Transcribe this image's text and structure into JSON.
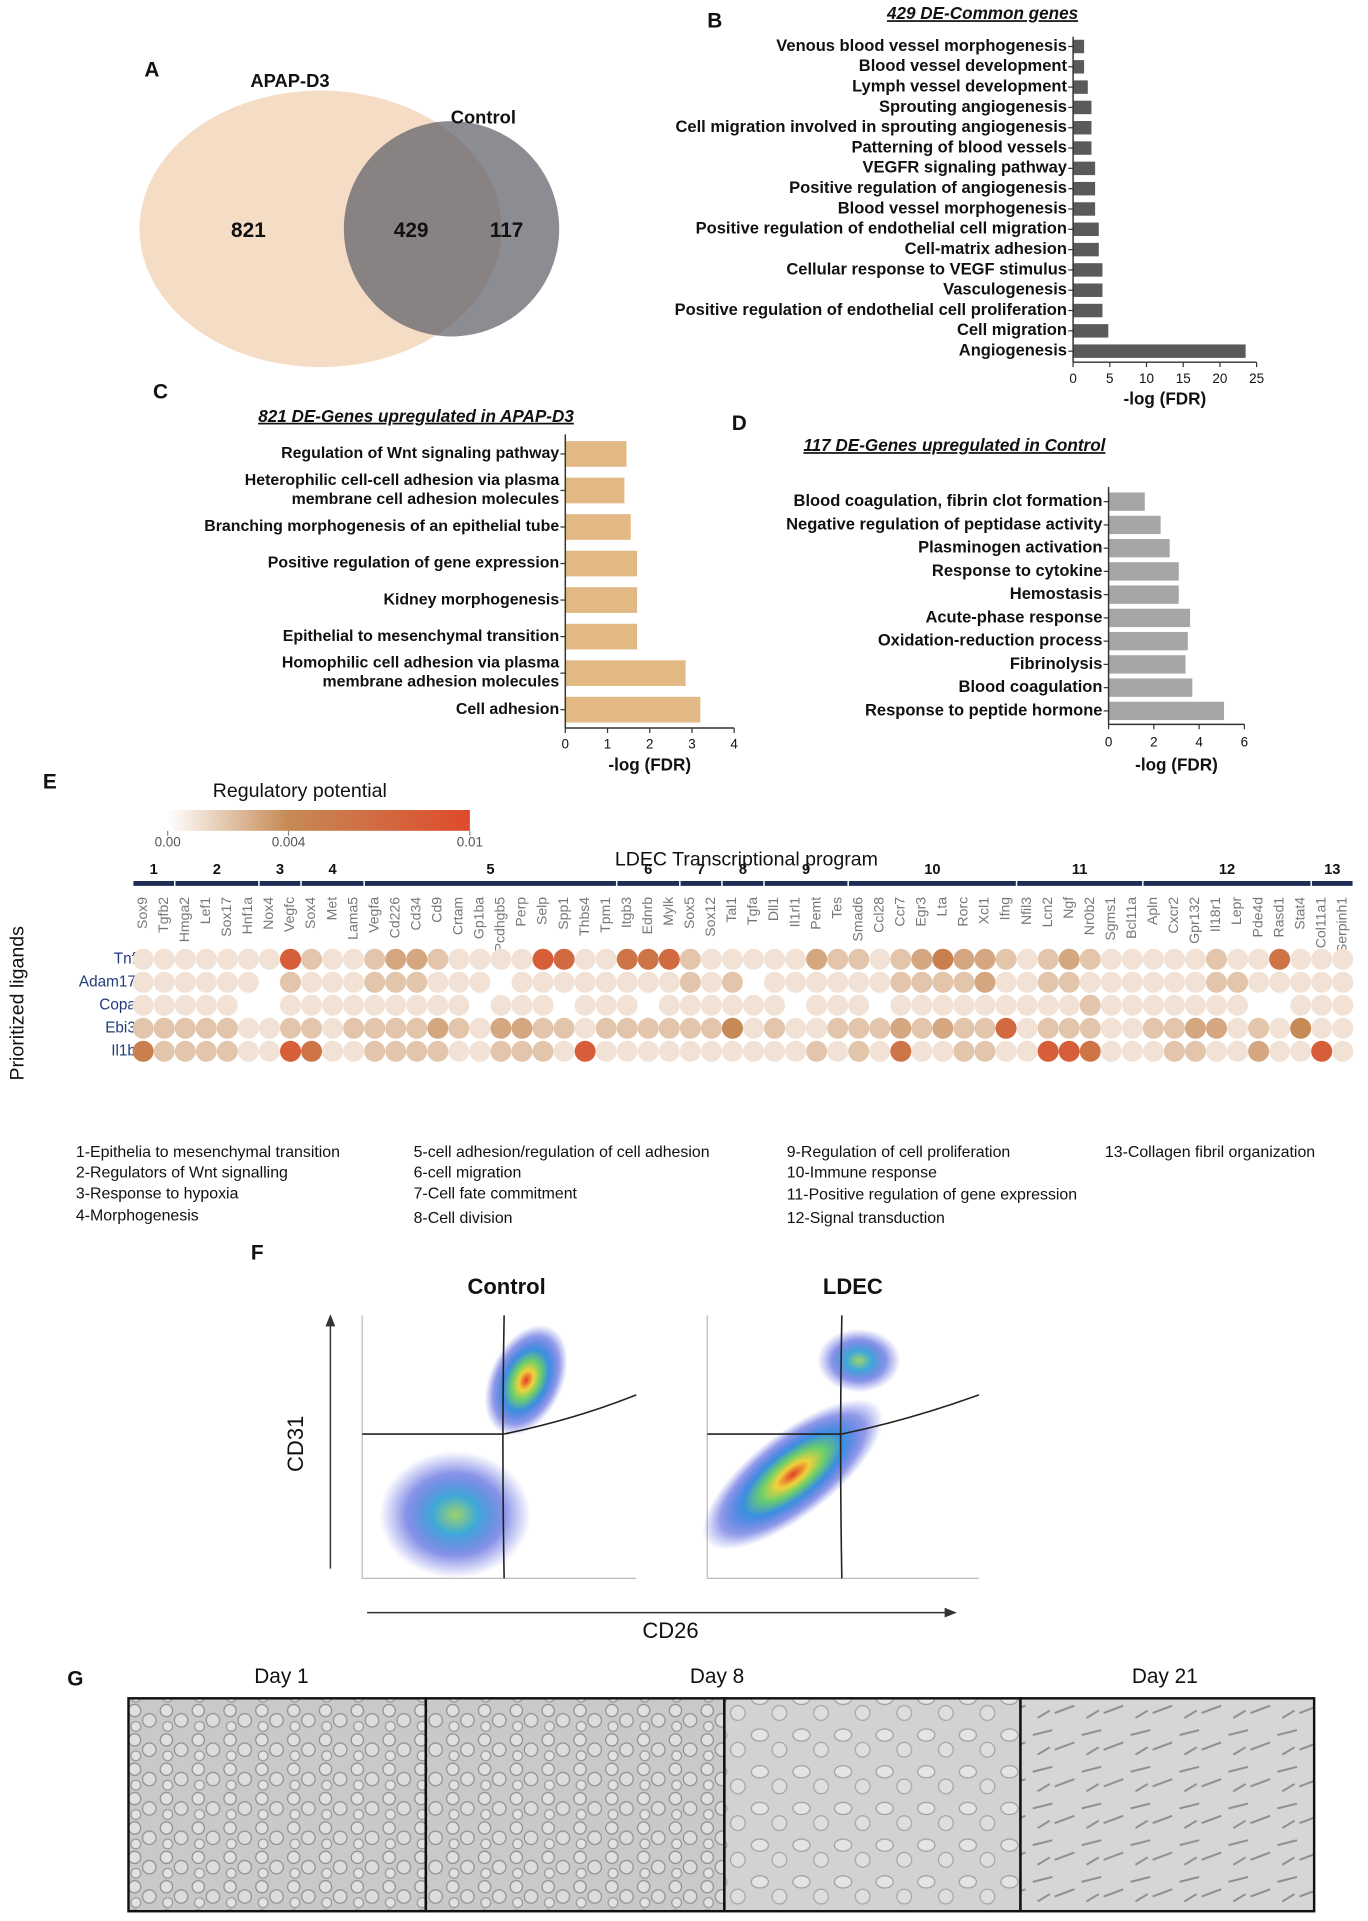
{
  "chart_data": [
    {
      "type": "venn",
      "panel": "A",
      "sets": [
        "APAP-D3",
        "Control"
      ],
      "values": [
        821,
        429,
        117
      ]
    },
    {
      "type": "hbar",
      "panel": "B",
      "title": "429 DE-Common genes",
      "x_label": "-log (FDR)",
      "color": "#5a5a5a",
      "categories": [
        "Venous blood vessel morphogenesis",
        "Blood vessel development",
        "Lymph vessel development",
        "Sprouting angiogenesis",
        "Cell migration involved in sprouting angiogenesis",
        "Patterning of blood vessels",
        "VEGFR signaling pathway",
        "Positive regulation of angiogenesis",
        "Blood vessel morphogenesis",
        "Positive regulation of endothelial cell migration",
        "Cell-matrix adhesion",
        "Cellular response to VEGF stimulus",
        "Vasculogenesis",
        "Positive regulation of endothelial cell proliferation",
        "Cell migration",
        "Angiogenesis"
      ],
      "values": [
        1.5,
        1.5,
        2,
        2.5,
        2.5,
        2.5,
        3,
        3,
        3,
        3.5,
        3.5,
        4,
        4,
        4,
        4.8,
        23.5
      ],
      "xlim": [
        0,
        25
      ],
      "xticks": [
        0,
        5,
        10,
        15,
        20,
        25
      ]
    },
    {
      "type": "hbar",
      "panel": "C",
      "title": "821 DE-Genes upregulated in APAP-D3",
      "x_label": "-log (FDR)",
      "color": "#e2b984",
      "categories": [
        "Regulation of Wnt signaling pathway",
        "Heterophilic cell-cell adhesion via plasma\nmembrane cell adhesion molecules",
        "Branching morphogenesis of an epithelial tube",
        "Positive regulation of gene expression",
        "Kidney morphogenesis",
        "Epithelial to mesenchymal transition",
        "Homophilic cell adhesion via plasma\nmembrane adhesion molecules",
        "Cell adhesion"
      ],
      "values": [
        1.45,
        1.4,
        1.55,
        1.7,
        1.7,
        1.7,
        2.85,
        3.2
      ],
      "xlim": [
        0,
        4
      ],
      "xticks": [
        0,
        1,
        2,
        3,
        4
      ]
    },
    {
      "type": "hbar",
      "panel": "D",
      "title": "117 DE-Genes upregulated in Control",
      "x_label": "-log (FDR)",
      "color": "#a6a6a6",
      "categories": [
        "Blood coagulation, fibrin clot formation",
        "Negative regulation of peptidase activity",
        "Plasminogen activation",
        "Response to cytokine",
        "Hemostasis",
        "Acute-phase response",
        "Oxidation-reduction process",
        "Fibrinolysis",
        "Blood coagulation",
        "Response to peptide hormone"
      ],
      "values": [
        1.6,
        2.3,
        2.7,
        3.1,
        3.1,
        3.6,
        3.5,
        3.4,
        3.7,
        5.1
      ],
      "xlim": [
        0,
        6
      ],
      "xticks": [
        0,
        2,
        4,
        6
      ]
    },
    {
      "type": "dotmatrix",
      "panel": "E",
      "colorbar_title": "Regulatory potential",
      "colorbar": {
        "ticks": [
          {
            "value": 0,
            "label": "0.00"
          },
          0.004,
          0.01
        ],
        "colors": [
          "#ffffff",
          "#c58a55",
          "#df4a2c"
        ]
      },
      "title": "LDEC Transcriptional program",
      "y_label": "Prioritized ligands",
      "ligands": [
        "Tnf",
        "Adam17",
        "Copa",
        "Ebi3",
        "Il1b"
      ],
      "groups": [
        {
          "label": "1",
          "targets": [
            "Sox9",
            "Tgfb2"
          ]
        },
        {
          "label": "2",
          "targets": [
            "Hmga2",
            "Lef1",
            "Sox17",
            "Hnf1a"
          ]
        },
        {
          "label": "3",
          "targets": [
            "Nox4",
            "Vegfc"
          ]
        },
        {
          "label": "4",
          "targets": [
            "Sox4",
            "Met",
            "Lama5"
          ]
        },
        {
          "label": "5",
          "targets": [
            "Vegfa",
            "Cd226",
            "Cd34",
            "Cd9",
            "Crtam",
            "Gp1ba",
            "Pcdhgb5",
            "Perp",
            "Selp",
            "Spp1",
            "Thbs4",
            "Tpm1"
          ]
        },
        {
          "label": "6",
          "targets": [
            "Itgb3",
            "Ednrb",
            "Mylk"
          ]
        },
        {
          "label": "7",
          "targets": [
            "Sox5",
            "Sox12"
          ]
        },
        {
          "label": "8",
          "targets": [
            "Tal1",
            "Tgfa"
          ]
        },
        {
          "label": "9",
          "targets": [
            "Dll1",
            "Il1rl1",
            "Pemt",
            "Tes"
          ]
        },
        {
          "label": "10",
          "targets": [
            "Smad6",
            "Ccl28",
            "Ccr7",
            "Egr3",
            "Lta",
            "Rorc",
            "Xcl1",
            "Ifng"
          ]
        },
        {
          "label": "11",
          "targets": [
            "Nfil3",
            "Lcn2",
            "Ngf",
            "Nr0b2",
            "Sgms1",
            "Bcl11a"
          ]
        },
        {
          "label": "12",
          "targets": [
            "Apln",
            "Cxcr2",
            "Gpr132",
            "Il18r1",
            "Lepr",
            "Pde4d",
            "Rasd1",
            "Stat4"
          ]
        },
        {
          "label": "13",
          "targets": [
            "Col11a1",
            "Serpinh1"
          ]
        }
      ],
      "values": [
        [
          0.001,
          0.001,
          0.001,
          0.001,
          0.001,
          0.001,
          0.001,
          0.008,
          0.002,
          0.001,
          0.001,
          0.002,
          0.003,
          0.003,
          0.002,
          0.001,
          0.001,
          0.001,
          0.001,
          0.008,
          0.007,
          0.001,
          0.001,
          0.006,
          0.006,
          0.007,
          0.002,
          0.001,
          0.001,
          0.001,
          0.001,
          0.001,
          0.003,
          0.002,
          0.002,
          0.001,
          0.002,
          0.003,
          0.005,
          0.003,
          0.003,
          0.002,
          0.001,
          0.002,
          0.003,
          0.002,
          0.001,
          0.001,
          0.001,
          0.001,
          0.001,
          0.002,
          0.001,
          0.001,
          0.006,
          0.001,
          0.001,
          0.001
        ],
        [
          0.001,
          0.001,
          0.001,
          0.001,
          0.001,
          0.001,
          0,
          0.002,
          0.001,
          0.001,
          0.001,
          0.002,
          0.002,
          0.002,
          0.001,
          0.001,
          0.001,
          0,
          0.001,
          0.001,
          0.001,
          0.001,
          0.001,
          0.001,
          0.001,
          0.001,
          0.002,
          0.001,
          0.002,
          0,
          0.001,
          0.001,
          0.001,
          0.001,
          0.001,
          0.001,
          0.002,
          0.002,
          0.002,
          0.002,
          0.003,
          0.001,
          0.001,
          0.002,
          0.002,
          0.001,
          0.001,
          0.001,
          0.001,
          0.001,
          0.001,
          0.002,
          0.002,
          0.001,
          0.001,
          0.001,
          0.001,
          0.001
        ],
        [
          0.001,
          0.001,
          0.001,
          0.001,
          0.001,
          0,
          0,
          0.001,
          0.001,
          0.001,
          0.001,
          0.001,
          0.001,
          0.001,
          0.001,
          0.001,
          0,
          0.001,
          0.001,
          0.001,
          0,
          0.001,
          0.001,
          0.001,
          0,
          0.001,
          0.001,
          0.001,
          0.001,
          0.001,
          0.001,
          0,
          0.001,
          0.001,
          0.001,
          0,
          0.001,
          0.001,
          0.001,
          0.001,
          0.001,
          0.001,
          0.001,
          0.001,
          0.001,
          0.002,
          0.001,
          0.001,
          0.001,
          0.001,
          0.001,
          0.001,
          0.001,
          0,
          0,
          0.001,
          0.001,
          0.001
        ],
        [
          0.002,
          0.002,
          0.002,
          0.002,
          0.002,
          0.001,
          0.001,
          0.002,
          0.002,
          0.001,
          0.002,
          0.002,
          0.002,
          0.002,
          0.003,
          0.002,
          0.001,
          0.003,
          0.003,
          0.002,
          0.002,
          0.001,
          0.002,
          0.002,
          0.002,
          0.002,
          0.002,
          0.002,
          0.004,
          0.001,
          0.002,
          0.001,
          0.001,
          0.002,
          0.002,
          0.002,
          0.003,
          0.002,
          0.003,
          0.002,
          0.002,
          0.007,
          0.001,
          0.002,
          0.002,
          0.002,
          0.001,
          0.001,
          0.002,
          0.002,
          0.003,
          0.003,
          0.001,
          0.002,
          0.001,
          0.004,
          0.001,
          0.001
        ],
        [
          0.005,
          0.002,
          0.002,
          0.002,
          0.002,
          0.001,
          0.001,
          0.008,
          0.006,
          0.001,
          0.001,
          0.002,
          0.002,
          0.002,
          0.002,
          0.001,
          0.001,
          0.002,
          0.002,
          0.002,
          0.001,
          0.008,
          0.001,
          0.001,
          0.001,
          0.001,
          0.001,
          0.001,
          0.001,
          0.001,
          0.001,
          0.001,
          0.002,
          0.001,
          0.002,
          0.001,
          0.006,
          0.001,
          0.001,
          0.002,
          0.002,
          0.001,
          0.001,
          0.008,
          0.008,
          0.006,
          0.001,
          0.001,
          0.001,
          0.002,
          0.002,
          0.001,
          0.001,
          0.003,
          0.001,
          0.001,
          0.008,
          0.001
        ]
      ],
      "group_legend": [
        "1-Epithelia to mesenchymal transition",
        "2-Regulators of Wnt signalling",
        "3-Response to hypoxia",
        "4-Morphogenesis",
        "5-cell adhesion/regulation of cell adhesion",
        "6-cell migration",
        "7-Cell fate commitment",
        "8-Cell division",
        "9-Regulation of cell proliferation",
        "10-Immune response",
        "11-Positive regulation of gene expression",
        "12-Signal transduction",
        "13-Collagen fibril organization"
      ]
    }
  ],
  "flow": {
    "panel": "F",
    "titles": [
      "Control",
      "LDEC"
    ],
    "y_label": "CD31",
    "x_label": "CD26"
  },
  "micrographs": {
    "panel": "G",
    "labels": [
      "Day 1",
      "Day 8",
      "Day 21"
    ]
  }
}
